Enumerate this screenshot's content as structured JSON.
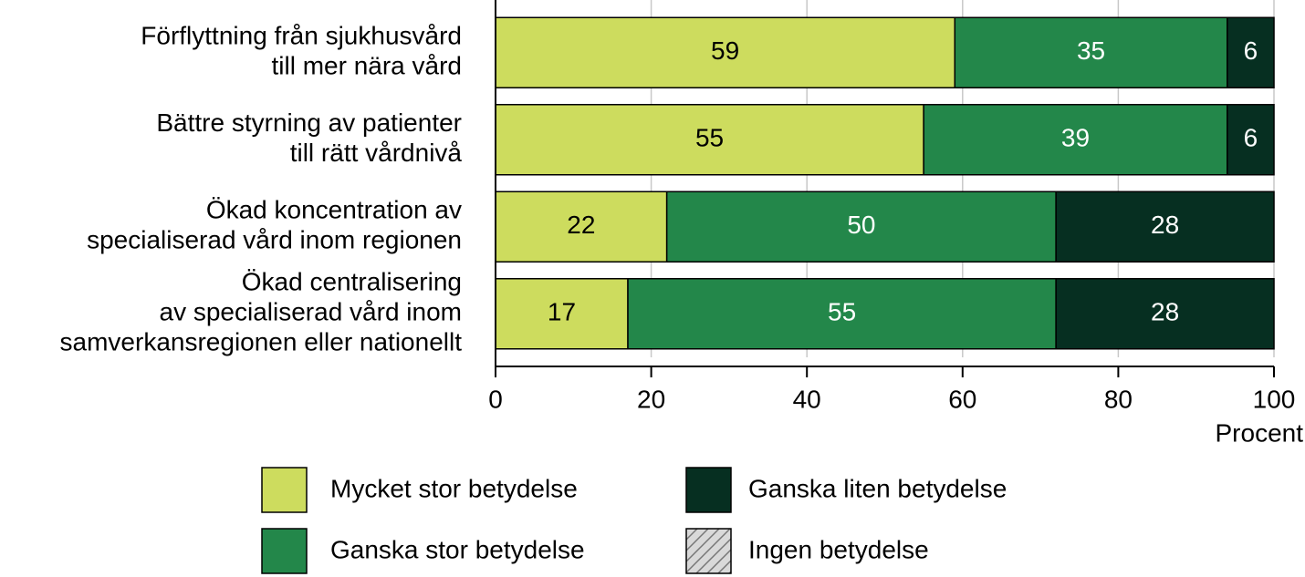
{
  "chart_data": {
    "type": "stacked-barh",
    "categories": [
      "Förflyttning från sjukhusvård\ntill mer nära vård",
      "Bättre styrning av patienter\ntill rätt vårdnivå",
      "Ökad koncentration av\nspecialiserad vård inom regionen",
      "Ökad centralisering\nav specialiserad vård inom\nsamverkansregionen eller nationellt"
    ],
    "series": [
      {
        "name": "Mycket stor betydelse",
        "color": "#cddc5e",
        "label_color": "#000000",
        "values": [
          59,
          55,
          22,
          17
        ]
      },
      {
        "name": "Ganska stor betydelse",
        "color": "#23874a",
        "label_color": "#ffffff",
        "values": [
          35,
          39,
          50,
          55
        ]
      },
      {
        "name": "Ganska liten betydelse",
        "color": "#062f21",
        "label_color": "#ffffff",
        "values": [
          6,
          6,
          28,
          28
        ]
      },
      {
        "name": "Ingen betydelse",
        "color": "#d9d9d9",
        "pattern": "hatch",
        "label_color": "#000000",
        "values": [
          0,
          0,
          0,
          0
        ]
      }
    ],
    "xlim": [
      0,
      100
    ],
    "xticks": [
      0,
      20,
      40,
      60,
      80,
      100
    ],
    "xlabel": "Procent",
    "grid": true
  }
}
